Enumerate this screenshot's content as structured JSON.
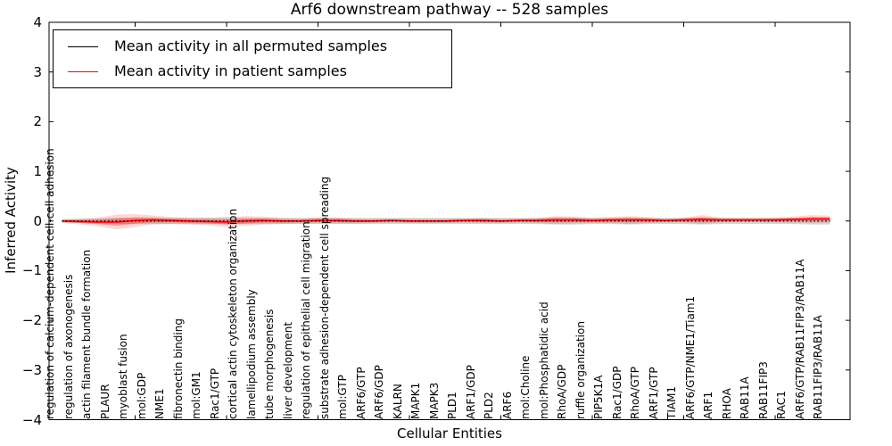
{
  "chart_data": {
    "type": "line",
    "title": "Arf6 downstream pathway -- 528 samples",
    "xlabel": "Cellular Entities",
    "ylabel": "Inferred Activity",
    "ylim": [
      -4,
      4
    ],
    "ytick_labels": [
      "4",
      "3",
      "2",
      "1",
      "0",
      "−1",
      "−2",
      "−3",
      "−4"
    ],
    "ytick_values": [
      4,
      3,
      2,
      1,
      0,
      -1,
      -2,
      -3,
      -4
    ],
    "x_major_ticks": [
      5,
      10,
      15,
      20,
      25,
      30,
      35,
      40
    ],
    "grid": false,
    "legend_position": "upper left",
    "categories": [
      "regulation of calcium-dependent cell-cell adhesion",
      "regulation of axonogenesis",
      "actin filament bundle formation",
      "PLAUR",
      "myoblast fusion",
      "mol:GDP",
      "NME1",
      "fibronectin binding",
      "mol:GM1",
      "Rac1/GTP",
      "cortical actin cytoskeleton organization",
      "lamellipodium assembly",
      "tube morphogenesis",
      "liver development",
      "regulation of epithelial cell migration",
      "substrate adhesion-dependent cell spreading",
      "mol:GTP",
      "ARF6/GTP",
      "ARF6/GDP",
      "KALRN",
      "MAPK1",
      "MAPK3",
      "PLD1",
      "ARF1/GDP",
      "PLD2",
      "ARF6",
      "mol:Choline",
      "mol:Phosphatidic acid",
      "RhoA/GDP",
      "ruffle organization",
      "PIP5K1A",
      "Rac1/GDP",
      "RhoA/GTP",
      "ARF1/GTP",
      "TIAM1",
      "ARF6/GTP/NME1/Tiam1",
      "ARF1",
      "RHOA",
      "RAB11A",
      "RAB11FIP3",
      "RAC1",
      "ARF6/GTP/RAB11FIP3/RAB11A",
      "RAB11FIP3/RAB11A"
    ],
    "series": [
      {
        "name": "Mean activity in all permuted samples",
        "color": "#000000",
        "style": "dotted",
        "values": [
          0,
          0,
          0,
          0,
          0,
          0,
          0,
          0,
          0,
          0,
          0,
          0,
          0,
          0,
          0,
          0,
          0,
          0,
          0,
          0,
          0,
          0,
          0,
          0,
          0,
          0,
          0,
          0,
          0,
          0,
          0,
          0,
          0,
          0,
          0,
          0,
          0,
          0,
          0,
          0,
          0,
          0,
          0
        ],
        "band_halfwidth": [
          0.03,
          0.04,
          0.05,
          0.06,
          0.06,
          0.06,
          0.06,
          0.06,
          0.06,
          0.06,
          0.06,
          0.06,
          0.06,
          0.06,
          0.06,
          0.06,
          0.06,
          0.06,
          0.06,
          0.06,
          0.06,
          0.06,
          0.06,
          0.06,
          0.06,
          0.06,
          0.06,
          0.07,
          0.07,
          0.06,
          0.06,
          0.07,
          0.06,
          0.06,
          0.06,
          0.07,
          0.06,
          0.06,
          0.06,
          0.06,
          0.06,
          0.07,
          0.07
        ],
        "band_color": "#a0a0a0"
      },
      {
        "name": "Mean activity in patient samples",
        "color": "#ff0000",
        "style": "solid",
        "values": [
          0.0,
          -0.01,
          -0.02,
          -0.02,
          0.01,
          0.02,
          0.01,
          0.0,
          -0.01,
          -0.02,
          0.0,
          0.01,
          0.0,
          0.0,
          0.01,
          0.01,
          0.0,
          0.0,
          0.01,
          0.0,
          0.0,
          0.0,
          0.01,
          0.01,
          0.0,
          0.01,
          0.01,
          0.02,
          0.02,
          0.01,
          0.02,
          0.02,
          0.02,
          0.01,
          0.02,
          0.03,
          0.02,
          0.02,
          0.02,
          0.02,
          0.03,
          0.04,
          0.04
        ],
        "band_halfwidth": [
          0.04,
          0.06,
          0.09,
          0.15,
          0.13,
          0.09,
          0.07,
          0.07,
          0.08,
          0.1,
          0.1,
          0.08,
          0.06,
          0.05,
          0.06,
          0.06,
          0.05,
          0.04,
          0.04,
          0.04,
          0.04,
          0.04,
          0.04,
          0.05,
          0.04,
          0.04,
          0.05,
          0.08,
          0.07,
          0.05,
          0.06,
          0.08,
          0.06,
          0.04,
          0.05,
          0.09,
          0.05,
          0.04,
          0.04,
          0.05,
          0.06,
          0.08,
          0.07
        ],
        "band_color": "#ff0000"
      }
    ]
  }
}
